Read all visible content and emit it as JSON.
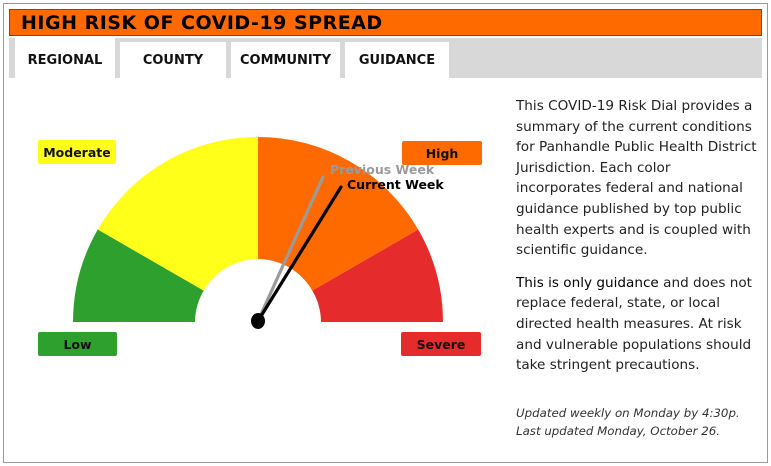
{
  "title": "HIGH RISK OF COVID-19 SPREAD",
  "tabs": [
    {
      "label": "REGIONAL",
      "active": true
    },
    {
      "label": "COUNTY",
      "active": false
    },
    {
      "label": "COMMUNITY",
      "active": false
    },
    {
      "label": "GUIDANCE",
      "active": false
    }
  ],
  "dial": {
    "levels": [
      {
        "label": "Low",
        "color": "#2ea02e"
      },
      {
        "label": "Moderate",
        "color": "#ffff1a"
      },
      {
        "label": "High",
        "color": "#ff6a00"
      },
      {
        "label": "Severe",
        "color": "#e52b2b"
      }
    ],
    "previous_week_label": "Previous Week",
    "current_week_label": "Current Week",
    "previous_week_color": "#9a9a9a",
    "current_week_color": "#000000"
  },
  "description": {
    "p1": "This COVID-19 Risk Dial provides a summary of the current conditions for Panhandle Public Health District Jurisdiction. Each color incorporates federal and national guidance published by top public health experts and is coupled with scientific guidance.",
    "p2_emphasis": "This is only guidance",
    "p2_rest": " and does not replace federal, state, or local directed health measures. At risk and vulnerable populations should take stringent precautions."
  },
  "updated": {
    "line1": "Updated weekly on Monday by 4:30p.",
    "line2": "Last updated Monday, October 26."
  }
}
